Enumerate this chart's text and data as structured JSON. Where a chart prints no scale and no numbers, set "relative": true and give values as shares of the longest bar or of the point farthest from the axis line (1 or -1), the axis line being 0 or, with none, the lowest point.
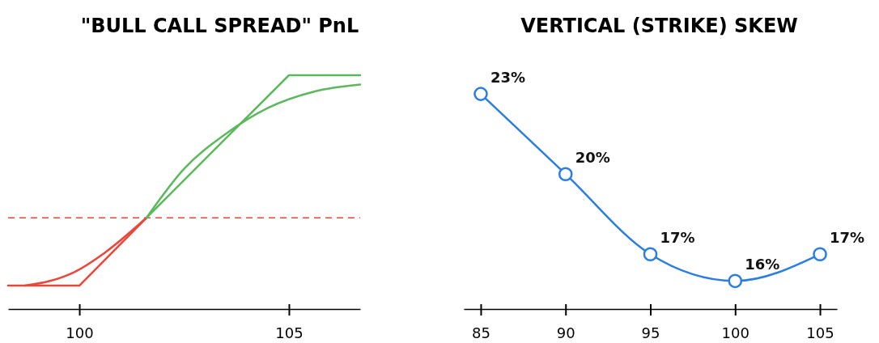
{
  "chart_data": [
    {
      "type": "line",
      "title": "\"BULL CALL SPREAD\" PnL",
      "relative": true,
      "xlim": [
        98.3,
        106.7
      ],
      "xticks": [
        100,
        105
      ],
      "tick_labels": "x",
      "series": [
        {
          "color": "#e8473a",
          "x": [
            98.3,
            100,
            101.6
          ],
          "values": [
            0.1,
            0.1,
            0.39
          ]
        },
        {
          "color": "#5cb85c",
          "x": [
            101.6,
            105,
            106.7
          ],
          "values": [
            0.39,
            1,
            1
          ]
        },
        {
          "color": "#e8473a",
          "x": [
            98.7,
            99.3,
            99.9,
            100.6,
            101.6
          ],
          "values": [
            0.1,
            0.12,
            0.16,
            0.24,
            0.39
          ]
        },
        {
          "color": "#5cb85c",
          "x": [
            101.6,
            102.5,
            103.5,
            104.5,
            105.6,
            106.7
          ],
          "values": [
            0.39,
            0.6,
            0.75,
            0.86,
            0.93,
            0.96
          ]
        }
      ],
      "ref_lines": [
        {
          "axis": "y",
          "value": 0.39,
          "color": "#e8473a",
          "line_style": "dashed"
        }
      ]
    },
    {
      "type": "line",
      "title": "VERTICAL (STRIKE) SKEW",
      "xlim": [
        84,
        106
      ],
      "xticks": [
        85,
        90,
        95,
        100,
        105
      ],
      "tick_labels": "x",
      "marker": "circle",
      "data_labels": true,
      "series": [
        {
          "color": "#2a7de1",
          "x": [
            85,
            90,
            95,
            100,
            105
          ],
          "values": [
            23,
            20,
            17,
            16,
            17
          ],
          "value_labels": [
            "23%",
            "20%",
            "17%",
            "16%",
            "17%"
          ]
        }
      ]
    }
  ]
}
